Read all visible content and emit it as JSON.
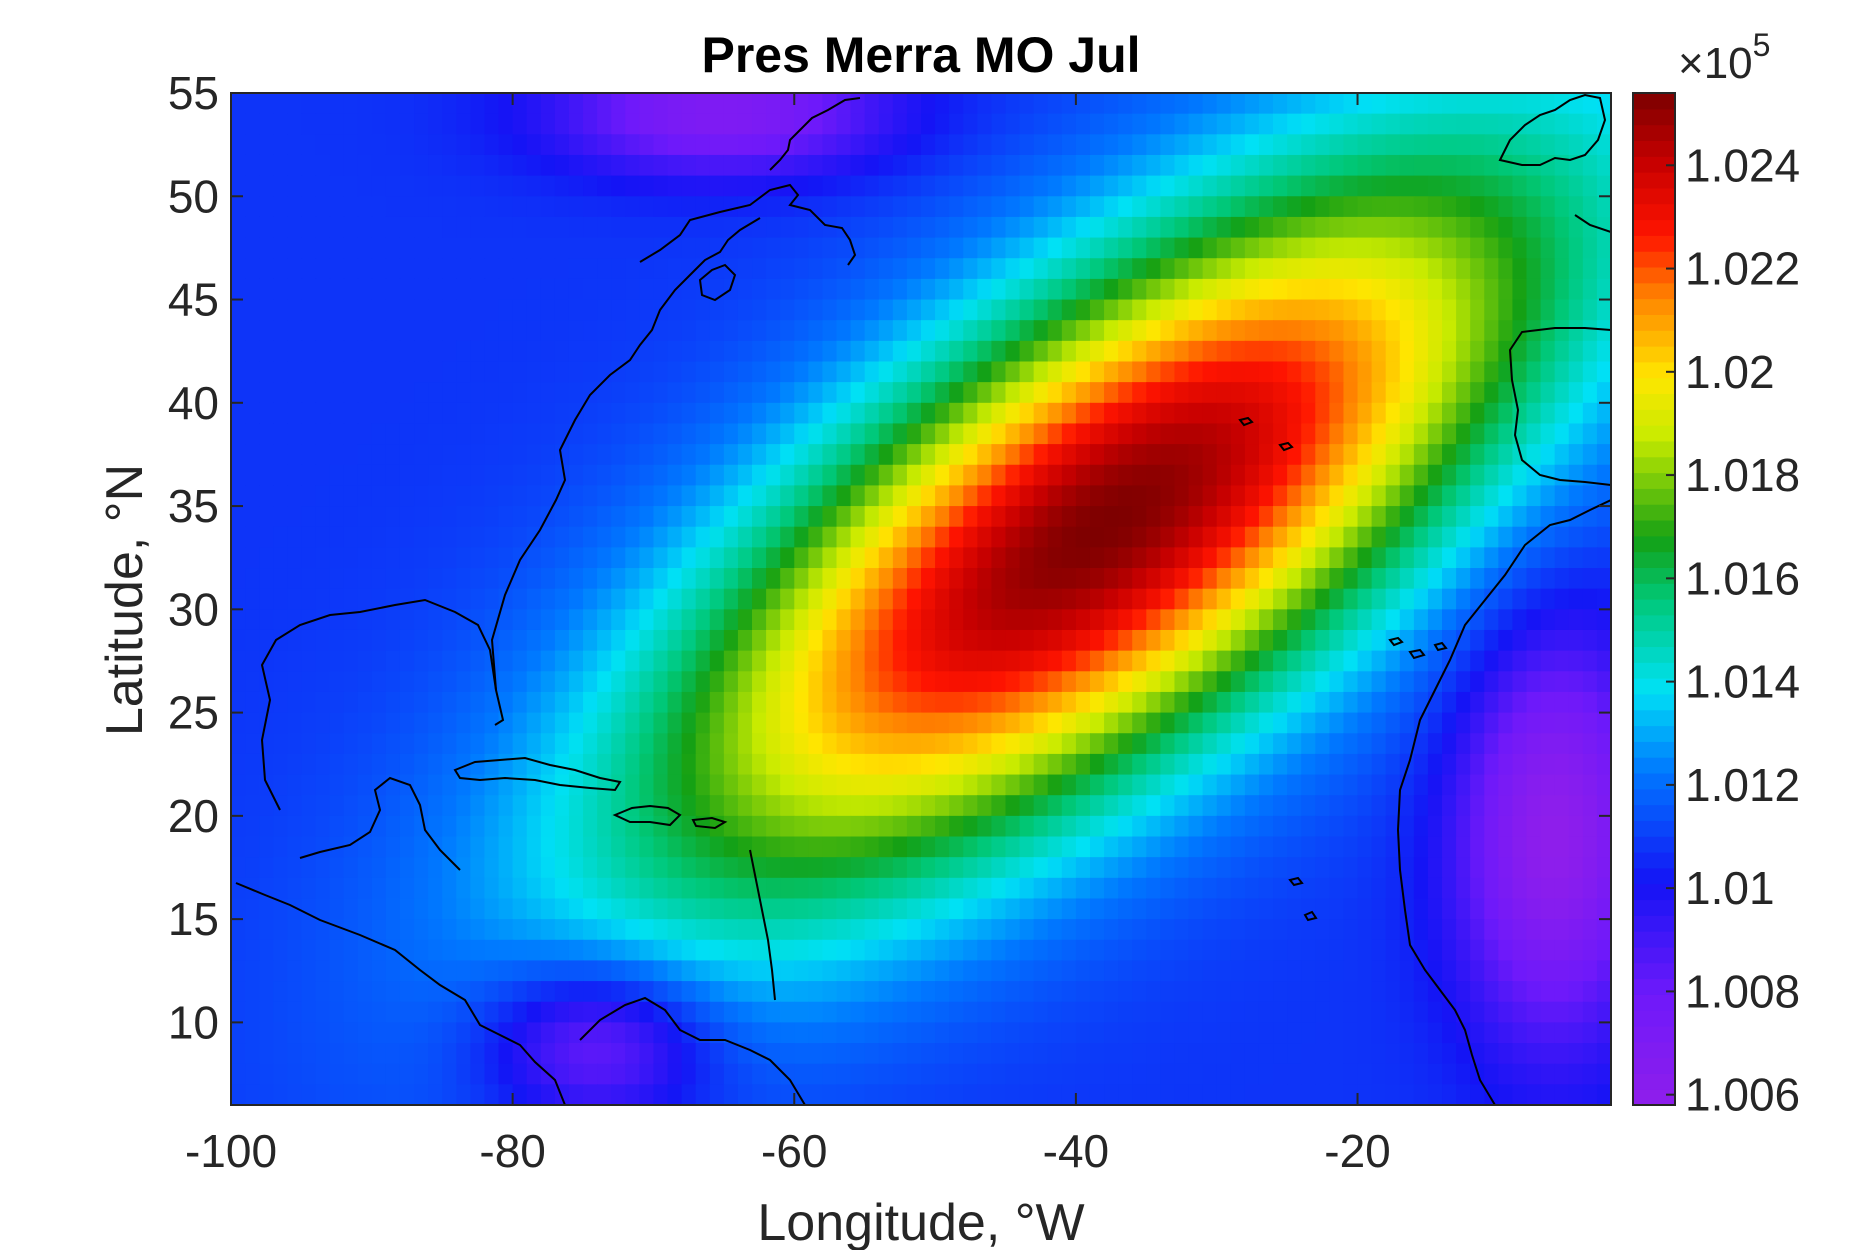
{
  "chart_data": {
    "type": "heatmap",
    "title": "Pres Merra MO Jul",
    "xlabel": "Longitude, °W",
    "ylabel": "Latitude, °N",
    "xlim": [
      -100,
      -2
    ],
    "ylim": [
      6,
      55
    ],
    "x_ticks": [
      -100,
      -80,
      -60,
      -40,
      -20
    ],
    "y_ticks": [
      10,
      15,
      20,
      25,
      30,
      35,
      40,
      45,
      50,
      55
    ],
    "x_tick_labels": [
      "-100",
      "-80",
      "-60",
      "-40",
      "-20"
    ],
    "y_tick_labels": [
      "10",
      "15",
      "20",
      "25",
      "30",
      "35",
      "40",
      "45",
      "50",
      "55"
    ],
    "colormap": "jet",
    "colorbar": {
      "multiplier_label": "×10",
      "multiplier_exponent": "5",
      "range": [
        1.0058,
        1.0254
      ],
      "ticks": [
        1.006,
        1.008,
        1.01,
        1.012,
        1.014,
        1.016,
        1.018,
        1.02,
        1.022,
        1.024
      ],
      "tick_labels": [
        "1.006",
        "1.008",
        "1.01",
        "1.012",
        "1.014",
        "1.016",
        "1.018",
        "1.02",
        "1.022",
        "1.024"
      ]
    },
    "features": {
      "subtropical_high": {
        "lon": -38,
        "lat": 34,
        "value": 1.0254
      },
      "low_west_africa": {
        "lon": -6,
        "lat": 19,
        "value": 1.0075
      },
      "low_central_america": {
        "lon": -74,
        "lat": 9,
        "value": 1.0085
      },
      "low_labrador": {
        "lon": -65,
        "lat": 54,
        "value": 1.0085
      }
    },
    "grid": false
  }
}
